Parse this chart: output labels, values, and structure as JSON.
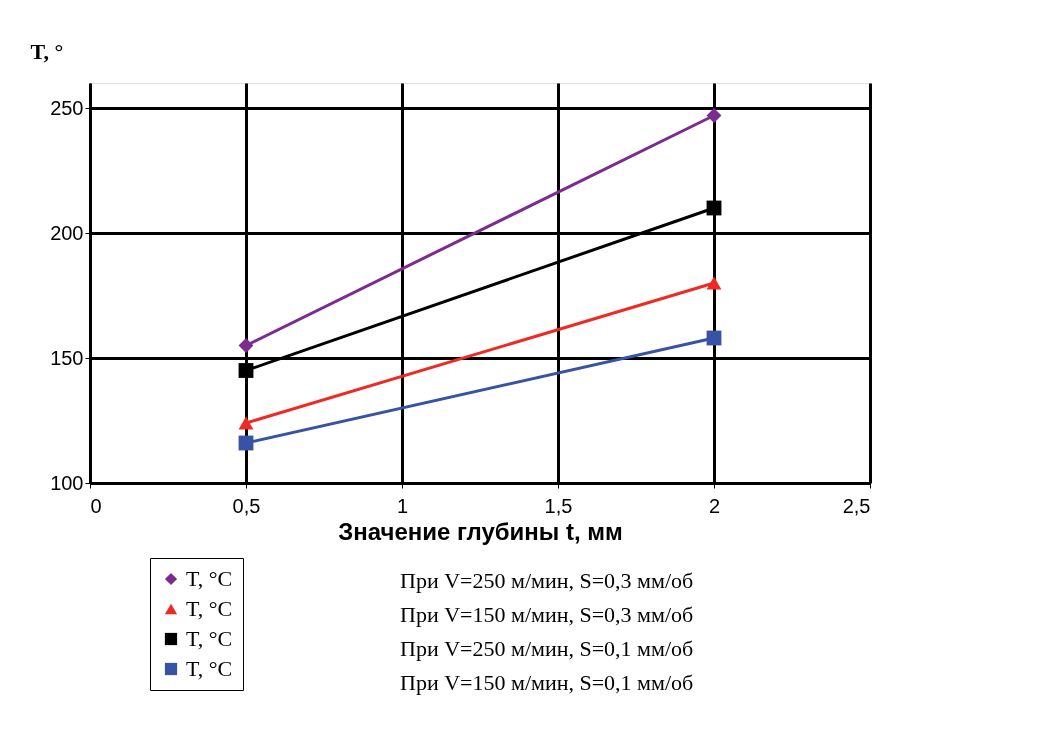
{
  "chart_data": {
    "type": "line",
    "xlabel": "Значение глубины t, мм",
    "ylabel": "T, °",
    "x": [
      0.5,
      2
    ],
    "series": [
      {
        "name": "T, °C",
        "color": "#7b2c8e",
        "values": [
          155,
          247
        ],
        "marker": "diamond"
      },
      {
        "name": "T, °C",
        "color": "#ee2a24",
        "values": [
          124,
          180
        ],
        "marker": "triangle"
      },
      {
        "name": "T, °C",
        "color": "#000000",
        "values": [
          145,
          210
        ],
        "marker": "square"
      },
      {
        "name": "T, °C",
        "color": "#3953a4",
        "values": [
          116,
          158
        ],
        "marker": "square"
      }
    ],
    "xlim": [
      0,
      2.5
    ],
    "xticks": [
      0,
      {
        "value": 0.5,
        "label": "0,5"
      },
      1,
      {
        "value": 1.5,
        "label": "1,5"
      },
      2,
      {
        "value": 2.5,
        "label": "2,5"
      }
    ],
    "ylim": [
      100,
      260
    ],
    "yticks": [
      100,
      150,
      200,
      250
    ],
    "grid": true,
    "legend": "bottom left",
    "line_style": "solid",
    "annotations": [
      "При V=250 м/мин, S=0,3 мм/об",
      "При V=150 м/мин, S=0,3 мм/об",
      "При V=250 м/мин, S=0,1 мм/об",
      "При V=150 м/мин, S=0,1 мм/об"
    ]
  }
}
